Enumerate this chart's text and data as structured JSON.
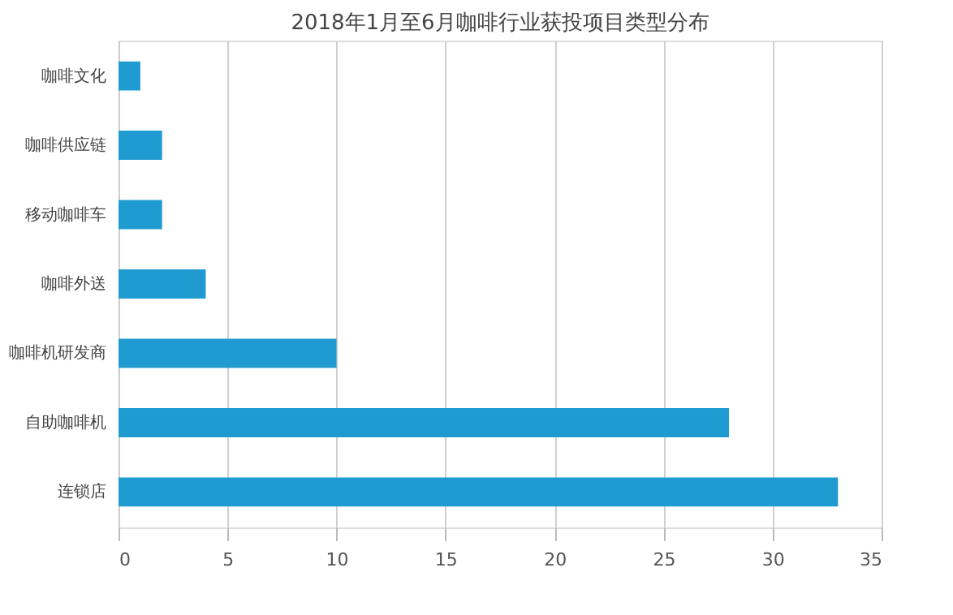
{
  "chart_data": {
    "type": "bar",
    "orientation": "horizontal",
    "title": "2018年1月至6月咖啡行业获投项目类型分布",
    "categories": [
      "咖啡文化",
      "咖啡供应链",
      "移动咖啡车",
      "咖啡外送",
      "咖啡机研发商",
      "自助咖啡机",
      "连锁店"
    ],
    "values": [
      1,
      2,
      2,
      4,
      10,
      28,
      33
    ],
    "color": "#1f9bd1",
    "xlim": [
      0,
      35
    ],
    "xticks": [
      0,
      5,
      10,
      15,
      20,
      25,
      30,
      35
    ],
    "grid": "x"
  }
}
